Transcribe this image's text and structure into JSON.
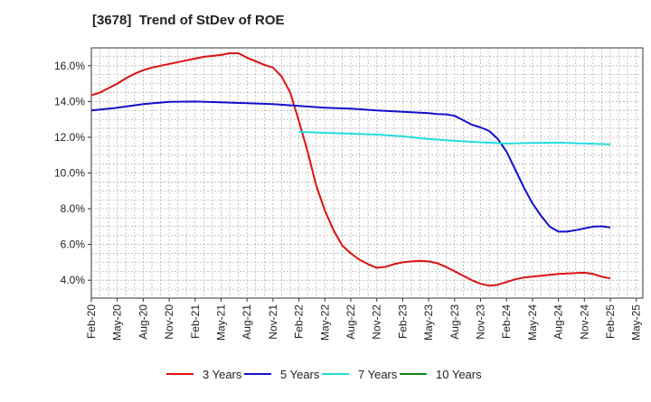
{
  "chart_data": {
    "type": "line",
    "title": "[3678]  Trend of StDev of ROE",
    "xlabel": "",
    "ylabel": "",
    "x_ticks": [
      "Feb-20",
      "May-20",
      "Aug-20",
      "Nov-20",
      "Feb-21",
      "May-21",
      "Aug-21",
      "Nov-21",
      "Feb-22",
      "May-22",
      "Aug-22",
      "Nov-22",
      "Feb-23",
      "May-23",
      "Aug-23",
      "Nov-23",
      "Feb-24",
      "May-24",
      "Aug-24",
      "Nov-24",
      "Feb-25",
      "May-25"
    ],
    "y_ticks": [
      "4.0%",
      "6.0%",
      "8.0%",
      "10.0%",
      "12.0%",
      "14.0%",
      "16.0%"
    ],
    "y_tick_values": [
      4,
      6,
      8,
      10,
      12,
      14,
      16
    ],
    "ylim": [
      3.0,
      17.0
    ],
    "y_unit": "%",
    "grid": true,
    "legend_position": "bottom",
    "series": [
      {
        "name": "3 Years",
        "color": "#dd1111",
        "x": [
          "2020-02",
          "2020-03",
          "2020-04",
          "2020-05",
          "2020-06",
          "2020-07",
          "2020-08",
          "2020-09",
          "2020-10",
          "2020-11",
          "2020-12",
          "2021-01",
          "2021-02",
          "2021-03",
          "2021-04",
          "2021-05",
          "2021-06",
          "2021-07",
          "2021-08",
          "2021-09",
          "2021-10",
          "2021-11",
          "2021-12",
          "2022-01",
          "2022-02",
          "2022-03",
          "2022-04",
          "2022-05",
          "2022-06",
          "2022-07",
          "2022-08",
          "2022-09",
          "2022-10",
          "2022-11",
          "2022-12",
          "2023-01",
          "2023-02",
          "2023-03",
          "2023-04",
          "2023-05",
          "2023-06",
          "2023-07",
          "2023-08",
          "2023-09",
          "2023-10",
          "2023-11",
          "2023-12",
          "2024-01",
          "2024-02",
          "2024-03",
          "2024-04",
          "2024-05",
          "2024-06",
          "2024-07",
          "2024-08",
          "2024-09",
          "2024-10",
          "2024-11",
          "2024-12",
          "2025-01",
          "2025-02"
        ],
        "values": [
          14.35,
          14.5,
          14.75,
          15.0,
          15.3,
          15.55,
          15.75,
          15.9,
          16.0,
          16.1,
          16.2,
          16.3,
          16.4,
          16.5,
          16.55,
          16.6,
          16.7,
          16.7,
          16.45,
          16.25,
          16.05,
          15.9,
          15.4,
          14.5,
          12.9,
          11.2,
          9.3,
          7.9,
          6.8,
          5.95,
          5.5,
          5.15,
          4.9,
          4.7,
          4.75,
          4.9,
          5.0,
          5.05,
          5.08,
          5.05,
          4.95,
          4.75,
          4.5,
          4.25,
          4.0,
          3.8,
          3.7,
          3.75,
          3.9,
          4.05,
          4.15,
          4.2,
          4.25,
          4.3,
          4.35,
          4.38,
          4.4,
          4.42,
          4.35,
          4.2,
          4.1
        ]
      },
      {
        "name": "5 Years",
        "color": "#1111cc",
        "x": [
          "2020-02",
          "2020-05",
          "2020-08",
          "2020-11",
          "2021-02",
          "2021-05",
          "2021-08",
          "2021-11",
          "2022-02",
          "2022-05",
          "2022-08",
          "2022-11",
          "2023-02",
          "2023-05",
          "2023-06",
          "2023-07",
          "2023-08",
          "2023-09",
          "2023-10",
          "2023-11",
          "2023-12",
          "2024-01",
          "2024-02",
          "2024-03",
          "2024-04",
          "2024-05",
          "2024-06",
          "2024-07",
          "2024-08",
          "2024-09",
          "2024-10",
          "2024-11",
          "2024-12",
          "2025-01",
          "2025-02"
        ],
        "values": [
          13.5,
          13.65,
          13.85,
          13.98,
          14.0,
          13.95,
          13.9,
          13.85,
          13.75,
          13.65,
          13.6,
          13.5,
          13.42,
          13.35,
          13.3,
          13.28,
          13.2,
          12.95,
          12.7,
          12.55,
          12.35,
          11.9,
          11.2,
          10.2,
          9.2,
          8.3,
          7.6,
          7.0,
          6.72,
          6.72,
          6.8,
          6.9,
          7.0,
          7.02,
          6.95
        ]
      },
      {
        "name": "7 Years",
        "color": "#22dddd",
        "x": [
          "2022-02",
          "2022-05",
          "2022-08",
          "2022-11",
          "2023-02",
          "2023-05",
          "2023-08",
          "2023-11",
          "2024-02",
          "2024-05",
          "2024-08",
          "2024-11",
          "2025-02"
        ],
        "values": [
          12.3,
          12.25,
          12.2,
          12.15,
          12.05,
          11.9,
          11.8,
          11.72,
          11.65,
          11.68,
          11.7,
          11.65,
          11.6
        ]
      },
      {
        "name": "10 Years",
        "color": "#118811",
        "x": [],
        "values": []
      }
    ]
  }
}
